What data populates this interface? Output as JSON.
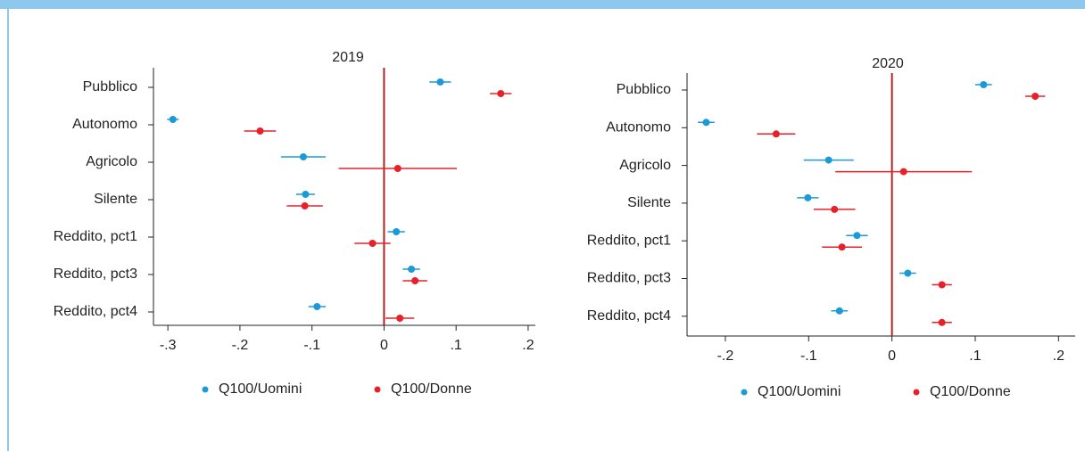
{
  "chart_data": [
    {
      "type": "errorbar",
      "title": "2019",
      "categories": [
        "Pubblico",
        "Autonomo",
        "Agricolo",
        "Silente",
        "Reddito, pct1",
        "Reddito, pct3",
        "Reddito, pct4"
      ],
      "series": [
        {
          "name": "Q100/Uomini",
          "color": "#1a9bd7",
          "values": [
            0.078,
            -0.293,
            -0.112,
            -0.109,
            0.017,
            0.038,
            -0.093
          ],
          "errors": [
            0.015,
            0.008,
            0.031,
            0.013,
            0.012,
            0.012,
            0.012
          ]
        },
        {
          "name": "Q100/Donne",
          "color": "#e8202a",
          "values": [
            0.162,
            -0.172,
            0.019,
            -0.11,
            -0.016,
            0.043,
            0.022
          ],
          "errors": [
            0.015,
            0.022,
            0.082,
            0.025,
            0.025,
            0.017,
            0.02
          ]
        }
      ],
      "xlim": [
        -0.32,
        0.21
      ],
      "xticks": [
        {
          "value": -0.3,
          "label": "-.3"
        },
        {
          "value": -0.2,
          "label": "-.2"
        },
        {
          "value": -0.1,
          "label": "-.1"
        },
        0,
        {
          "value": 0.1,
          "label": ".1"
        },
        {
          "value": 0.2,
          "label": ".2"
        }
      ],
      "xline": 0,
      "xline_color": "#b22222"
    },
    {
      "type": "errorbar",
      "title": "2020",
      "categories": [
        "Pubblico",
        "Autonomo",
        "Agricolo",
        "Silente",
        "Reddito, pct1",
        "Reddito, pct3",
        "Reddito, pct4"
      ],
      "series": [
        {
          "name": "Q100/Uomini",
          "color": "#1a9bd7",
          "values": [
            0.11,
            -0.223,
            -0.076,
            -0.101,
            -0.042,
            0.019,
            -0.063
          ],
          "errors": [
            0.01,
            0.01,
            0.03,
            0.013,
            0.013,
            0.01,
            0.01
          ]
        },
        {
          "name": "Q100/Donne",
          "color": "#e8202a",
          "values": [
            0.172,
            -0.139,
            0.014,
            -0.069,
            -0.06,
            0.06,
            0.06
          ],
          "errors": [
            0.012,
            0.023,
            0.082,
            0.025,
            0.024,
            0.012,
            0.012
          ]
        }
      ],
      "xlim": [
        -0.246,
        0.22
      ],
      "xticks": [
        {
          "value": -0.2,
          "label": "-.2"
        },
        {
          "value": -0.1,
          "label": "-.1"
        },
        0,
        {
          "value": 0.1,
          "label": ".1"
        },
        {
          "value": 0.2,
          "label": ".2"
        }
      ],
      "xline": 0,
      "xline_color": "#b22222"
    }
  ]
}
